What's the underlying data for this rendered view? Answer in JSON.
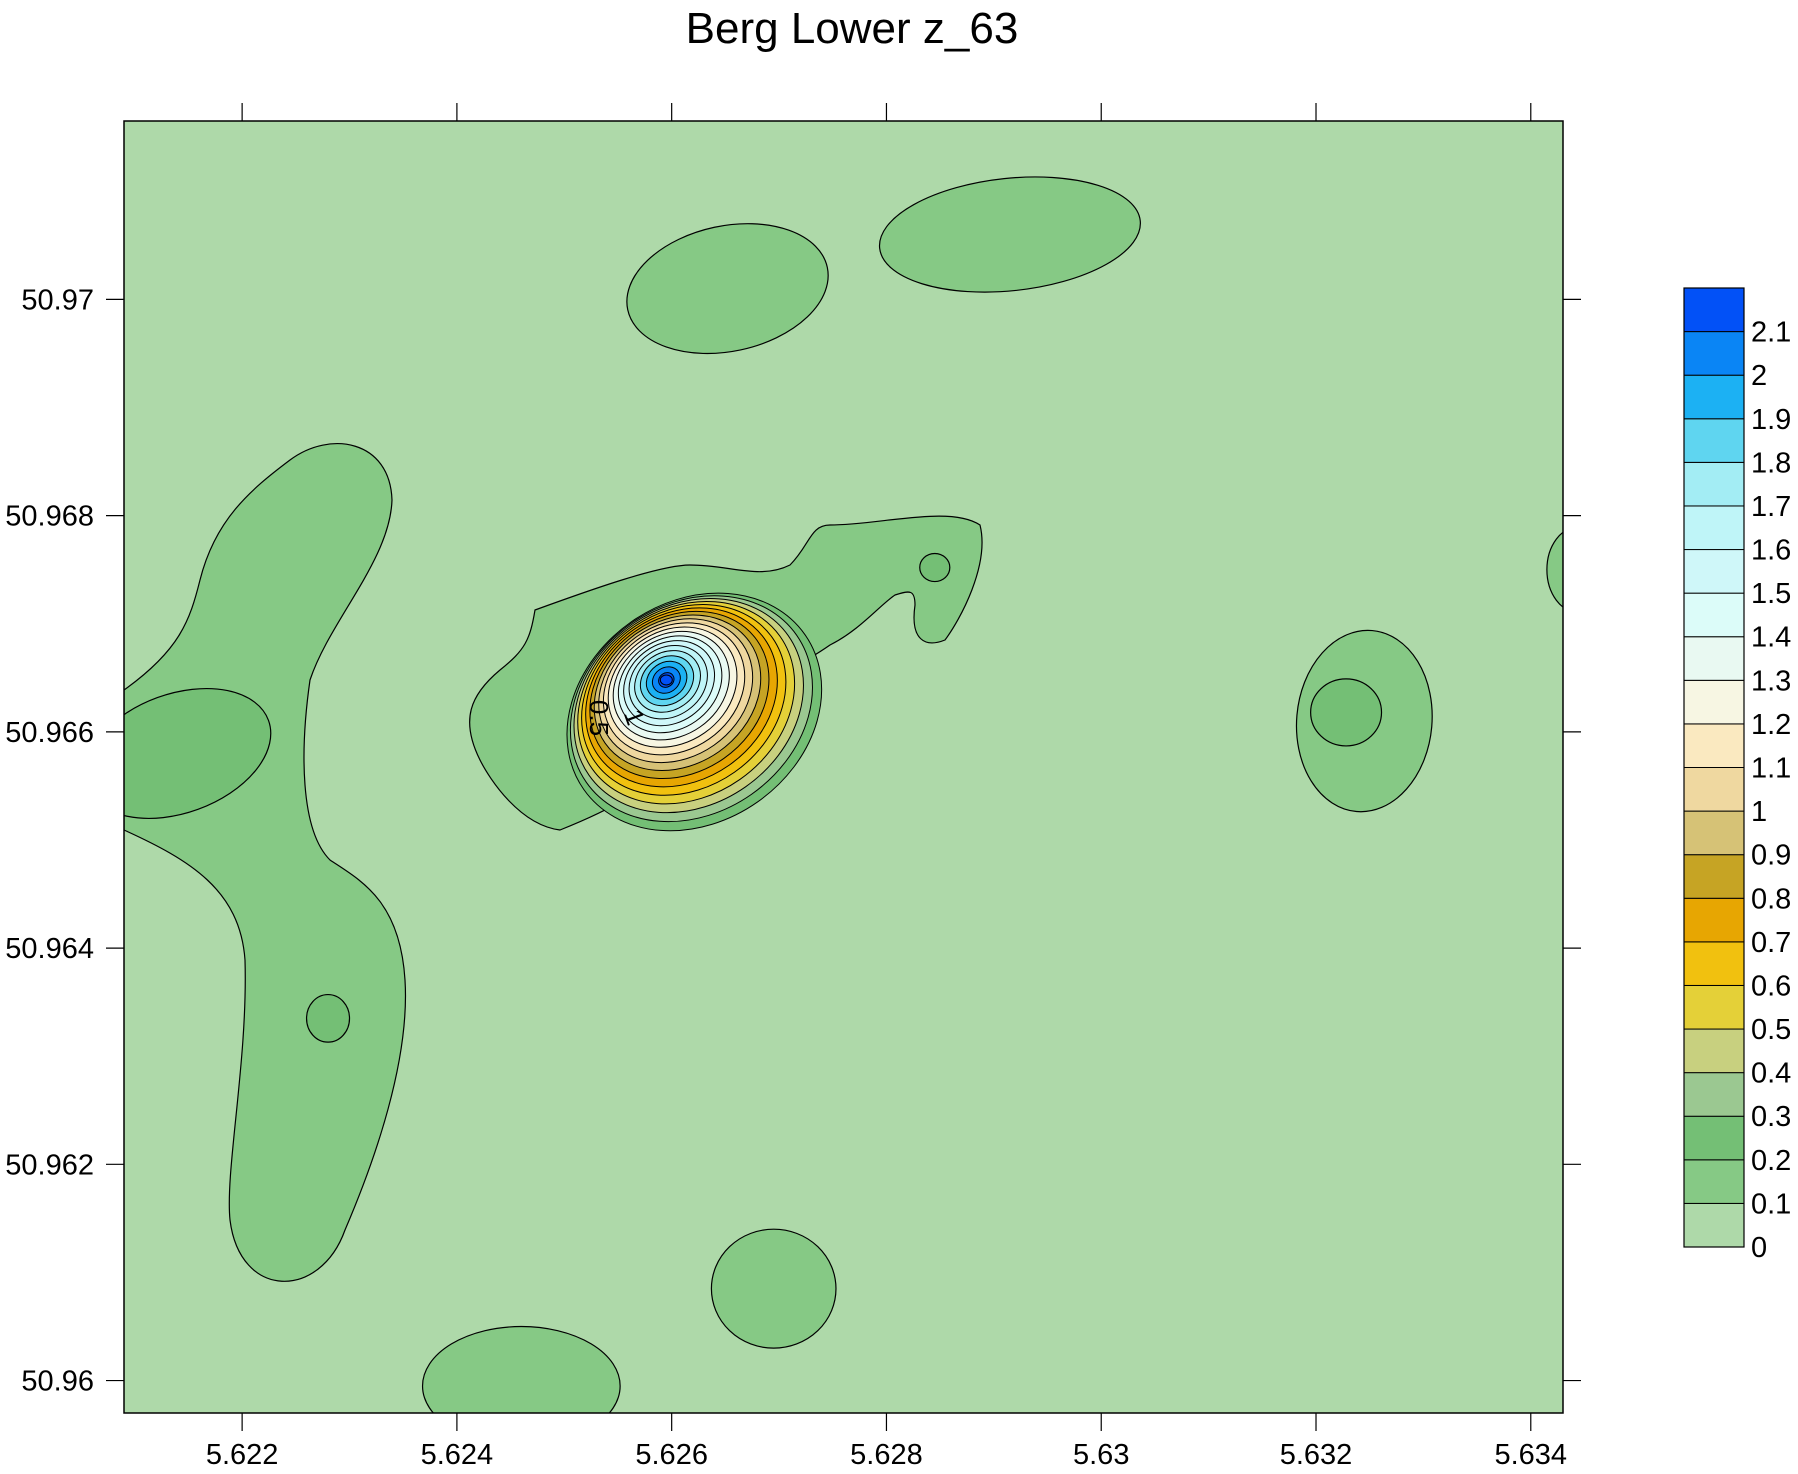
{
  "chart_data": {
    "type": "contour",
    "title": "Berg Lower z_63",
    "xlabel": "",
    "ylabel": "",
    "xlim": [
      5.6209,
      5.6343
    ],
    "ylim": [
      50.9597,
      50.97165
    ],
    "x_ticks": [
      5.622,
      5.624,
      5.626,
      5.628,
      5.63,
      5.632,
      5.634
    ],
    "x_tick_labels": [
      "5.622",
      "5.624",
      "5.626",
      "5.628",
      "5.63",
      "5.632",
      "5.634"
    ],
    "y_ticks": [
      50.96,
      50.962,
      50.964,
      50.966,
      50.968,
      50.97
    ],
    "y_tick_labels": [
      "50.96",
      "50.962",
      "50.964",
      "50.966",
      "50.968",
      "50.97"
    ],
    "levels": [
      0,
      0.1,
      0.2,
      0.3,
      0.4,
      0.5,
      0.6,
      0.7,
      0.8,
      0.9,
      1,
      1.1,
      1.2,
      1.3,
      1.4,
      1.5,
      1.6,
      1.7,
      1.8,
      1.9,
      2,
      2.1,
      2.2
    ],
    "colorbar_labels": [
      "0",
      "0.1",
      "0.2",
      "0.3",
      "0.4",
      "0.5",
      "0.6",
      "0.7",
      "0.8",
      "0.9",
      "1",
      "1.1",
      "1.2",
      "1.3",
      "1.4",
      "1.5",
      "1.6",
      "1.7",
      "1.8",
      "1.9",
      "2",
      "2.1"
    ],
    "colors": [
      "#aed9a9",
      "#86c985",
      "#74bf75",
      "#9bc891",
      "#c8d07f",
      "#e4d038",
      "#f1c10f",
      "#e7a602",
      "#c6a424",
      "#d6c276",
      "#efd8a0",
      "#fae9c0",
      "#f7f6e3",
      "#e9f9f2",
      "#dcfcf9",
      "#cff7f9",
      "#bff5f8",
      "#a3edf4",
      "#5fd5f0",
      "#1cb1f3",
      "#0a85f5",
      "#0251f7"
    ],
    "contour_labels": [
      "1",
      "0.5"
    ],
    "colorbar_position": "right",
    "grid": false,
    "features": [
      {
        "level": 0.1,
        "x": 5.62652,
        "y": 50.9701,
        "rx": 0.00095,
        "ry": 0.00058,
        "rot": -12
      },
      {
        "level": 0.1,
        "x": 5.62915,
        "y": 50.9706,
        "rx": 0.00122,
        "ry": 0.00052,
        "rot": -6
      },
      {
        "level": 0.1,
        "x": 5.62695,
        "y": 50.96085,
        "rx": 0.00058,
        "ry": 0.00055,
        "rot": 0
      },
      {
        "level": 0.1,
        "x": 5.6246,
        "y": 50.95995,
        "rx": 0.00092,
        "ry": 0.00055,
        "rot": 0
      },
      {
        "level": 0.1,
        "x": 5.63245,
        "y": 50.9661,
        "rx": 0.00063,
        "ry": 0.00084,
        "rot": 5
      },
      {
        "level": 0.2,
        "x": 5.63228,
        "y": 50.96618,
        "rx": 0.00033,
        "ry": 0.00031,
        "rot": 0
      },
      {
        "level": 0.1,
        "x": 5.63445,
        "y": 50.9675,
        "rx": 0.0003,
        "ry": 0.0004,
        "rot": 0
      },
      {
        "level": 0.2,
        "x": 5.6214,
        "y": 50.9658,
        "rx": 0.0009,
        "ry": 0.00055,
        "rot": -20
      },
      {
        "level": 0.2,
        "x": 5.6228,
        "y": 50.96335,
        "rx": 0.0002,
        "ry": 0.00022,
        "rot": 0
      },
      {
        "level": 0.2,
        "x": 5.62845,
        "y": 50.96752,
        "rx": 0.00014,
        "ry": 0.00013,
        "rot": 0
      }
    ],
    "peak": {
      "x": 5.62595,
      "y": 50.96648,
      "value": 2.2
    }
  }
}
